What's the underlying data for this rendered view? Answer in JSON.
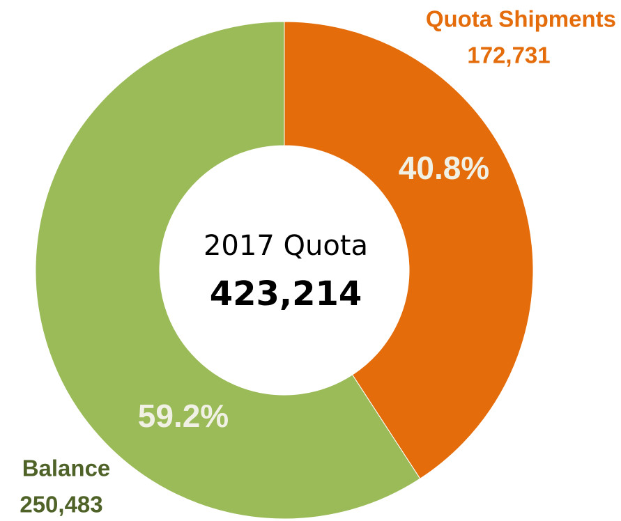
{
  "chart_data": {
    "type": "donut",
    "categories": [
      "Quota Shipments",
      "Balance"
    ],
    "values": [
      172731,
      250483
    ],
    "value_labels": [
      "172,731",
      "250,483"
    ],
    "percents": [
      40.8,
      59.2
    ],
    "percent_labels": [
      "40.8%",
      "59.2%"
    ],
    "colors": [
      "#e46c0a",
      "#9bbb59"
    ],
    "label_colors": [
      "#e46c0a",
      "#4f6228"
    ],
    "center_label": "2017 Quota",
    "total": 423214,
    "total_label": "423,214"
  }
}
